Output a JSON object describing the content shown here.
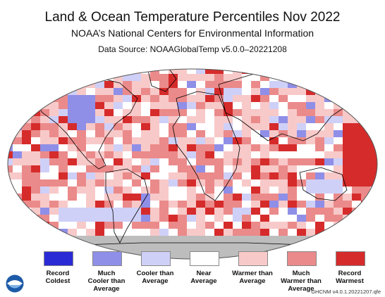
{
  "header": {
    "title": "Land & Ocean Temperature Percentiles Nov 2022",
    "subtitle": "NOAA’s National Centers for Environmental Information",
    "source": "Data Source: NOAAGlobalTemp v5.0.0–20221208"
  },
  "legend": [
    {
      "label": "Record\nColdest",
      "color": "#2b2bd6"
    },
    {
      "label": "Much\nCooler than\nAverage",
      "color": "#8f8fe8"
    },
    {
      "label": "Cooler than\nAverage",
      "color": "#cfd0f8"
    },
    {
      "label": "Near\nAverage",
      "color": "#ffffff"
    },
    {
      "label": "Warmer than\nAverage",
      "color": "#f8c9c9"
    },
    {
      "label": "Much\nWarmer than\nAverage",
      "color": "#eb8a8a"
    },
    {
      "label": "Record\nWarmest",
      "color": "#d62b2b"
    }
  ],
  "credit": "GHCNM v4.0.1.20221207.qfe",
  "colors": {
    "missing": "#bdbdbd",
    "coast": "#000000"
  }
}
